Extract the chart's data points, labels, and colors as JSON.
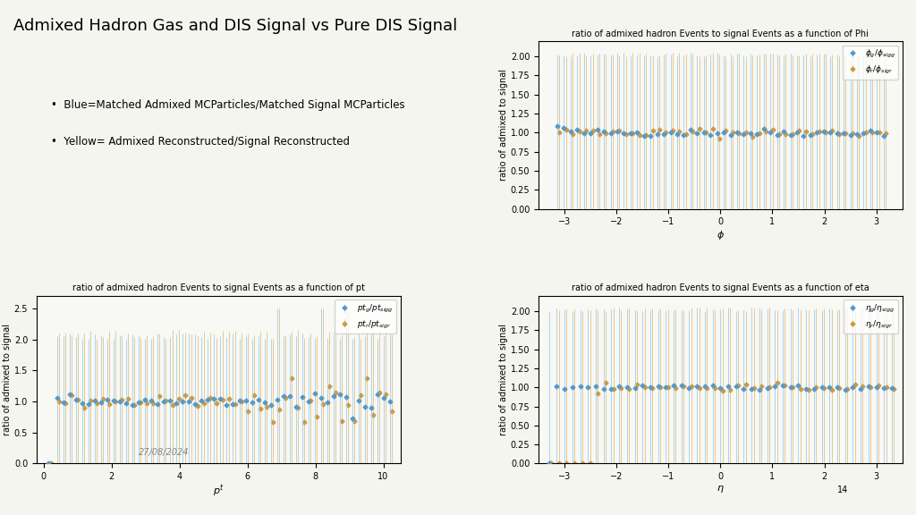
{
  "title": "Admixed Hadron Gas and DIS Signal vs Pure DIS Signal",
  "bullet1": "Blue=Matched Admixed MCParticles/Matched Signal MCParticles",
  "bullet2": "Yellow= Admixed Reconstructed/Signal Reconstructed",
  "phi_title": "ratio of admixed hadron Events to signal Events as a function of Phi",
  "phi_xlabel": "$\\phi$",
  "phi_ylabel": "ratio of admixed to signal",
  "phi_xlim": [
    -3.5,
    3.5
  ],
  "phi_ylim": [
    0.0,
    2.2
  ],
  "phi_legend1": "$\\phi_g/\\phi_{sigg}$",
  "phi_legend2": "$\\phi_r/\\phi_{sigr}$",
  "pt_title": "ratio of admixed hadron Events to signal Events as a function of pt",
  "pt_xlabel": "$p^t$",
  "pt_ylabel": "ratio of admixed to signal",
  "pt_xlim": [
    -0.2,
    10.5
  ],
  "pt_ylim": [
    0.0,
    2.7
  ],
  "pt_legend1": "$pt_g/pt_{sigg}$",
  "pt_legend2": "$pt_r/pt_{sigr}$",
  "pt_watermark": "27/08/2024",
  "eta_title": "ratio of admixed hadron Events to signal Events as a function of eta",
  "eta_xlabel": "$\\eta$",
  "eta_ylabel": "ratio of admixed to signal",
  "eta_xlim": [
    -3.5,
    3.5
  ],
  "eta_ylim": [
    0.0,
    2.2
  ],
  "eta_legend1": "$\\eta_g/\\eta_{sigg}$",
  "eta_legend2": "$\\eta_r/\\eta_{sigr}$",
  "blue_color": "#5599cc",
  "orange_color": "#cc9944",
  "blue_err_color": "#aad4ee",
  "orange_err_color": "#e8c990",
  "background_color": "#f5f5f0"
}
